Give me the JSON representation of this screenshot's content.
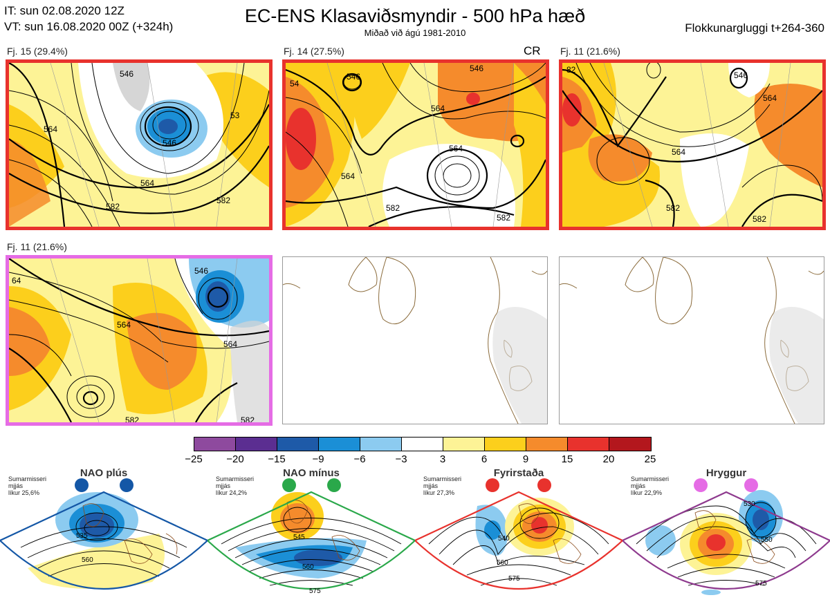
{
  "header": {
    "it_line": "IT: sun 02.08.2020 12Z",
    "vt_line": "VT: sun 16.08.2020 00Z  (+324h)",
    "title": "EC-ENS Klasaviðsmyndir - 500 hPa hæð",
    "subtitle": "Miðað við ágú 1981-2010",
    "window": "Flokkunargluggi t+264-360"
  },
  "panels": [
    {
      "label": "Fj. 15 (29.4%)",
      "border": "#e8322d",
      "contours": [
        "546",
        "546",
        "564",
        "564",
        "582",
        "582",
        "53"
      ]
    },
    {
      "label": "Fj. 14 (27.5%)",
      "border": "#e8322d",
      "badge": "CR",
      "contours": [
        "546",
        "546",
        "564",
        "564",
        "564",
        "582",
        "582",
        "54"
      ]
    },
    {
      "label": "Fj. 11 (21.6%)",
      "border": "#e8322d",
      "contours": [
        "546",
        "564",
        "564",
        "582",
        "582",
        "82"
      ]
    },
    {
      "label": "Fj. 11 (21.6%)",
      "border": "#e56ce5",
      "contours": [
        "546",
        "564",
        "564",
        "582",
        "582",
        "64"
      ]
    },
    {
      "label": "",
      "border": "#bbbbbb"
    },
    {
      "label": "",
      "border": "#bbbbbb"
    }
  ],
  "colorbar": {
    "colors": [
      "#8e4a9e",
      "#5b2e91",
      "#1e5aa8",
      "#1b8fd6",
      "#8ccbf0",
      "#ffffff",
      "#fdf396",
      "#fccf1c",
      "#f58b2c",
      "#e8322d",
      "#b3171d"
    ],
    "ticks": [
      "−25",
      "−20",
      "−15",
      "−9",
      "−6",
      "−3",
      "3",
      "6",
      "9",
      "15",
      "20",
      "25"
    ]
  },
  "regimes": [
    {
      "name": "NAO plús",
      "season": "Sumarmisseri",
      "smooth": "mjjás",
      "prob": "líkur 25,6%",
      "dot_color": "#1457a6",
      "frame_color": "#1457a6",
      "contours": [
        "535",
        "560"
      ]
    },
    {
      "name": "NAO mínus",
      "season": "Sumarmisseri",
      "smooth": "mjjás",
      "prob": "líkur 24,2%",
      "dot_color": "#2aa84a",
      "frame_color": "#2aa84a",
      "contours": [
        "545",
        "560",
        "575"
      ]
    },
    {
      "name": "Fyrirstaða",
      "season": "Sumarmisseri",
      "smooth": "mjjás",
      "prob": "líkur 27,3%",
      "dot_color": "#e8322d",
      "frame_color": "#e8322d",
      "contours": [
        "540",
        "560",
        "575"
      ]
    },
    {
      "name": "Hryggur",
      "season": "Sumarmisseri",
      "smooth": "mjjás",
      "prob": "líkur 22,9%",
      "dot_color": "#e56ce5",
      "frame_color": "#8e3a8e",
      "contours": [
        "530",
        "550",
        "575"
      ]
    }
  ]
}
